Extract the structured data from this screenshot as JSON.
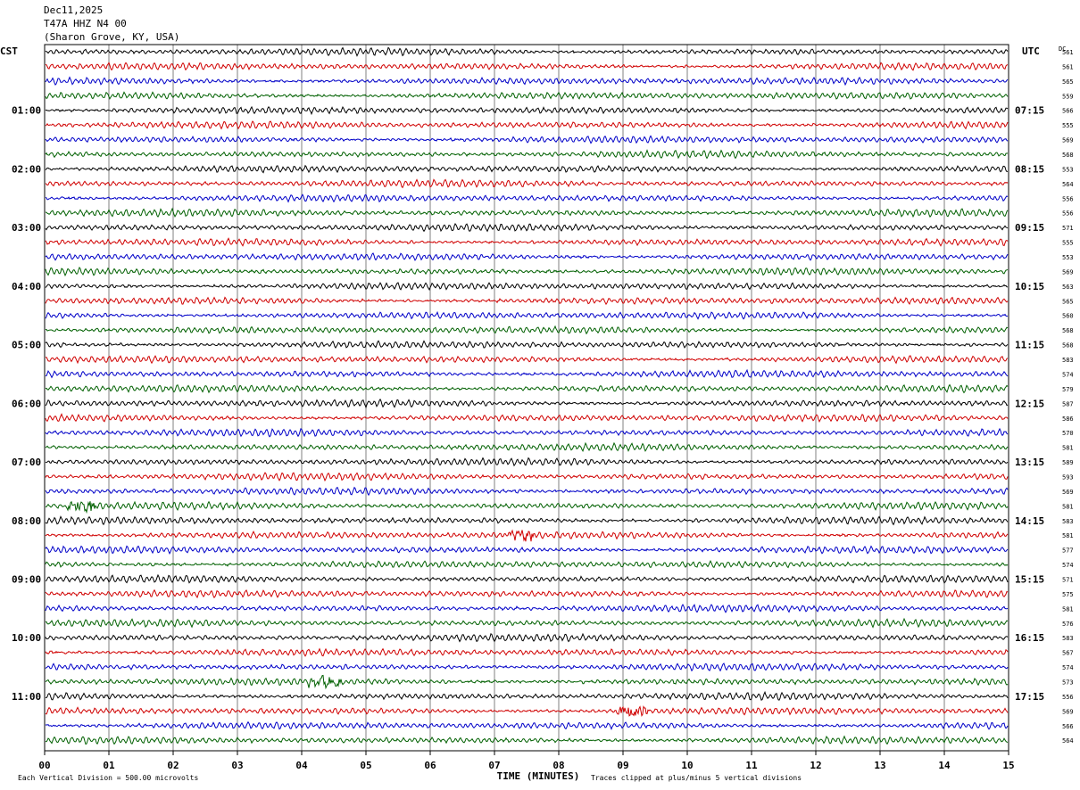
{
  "header": {
    "date": "Dec11,2025",
    "station": "T47A HHZ N4 00",
    "location": "(Sharon Grove, KY, USA)"
  },
  "left_tz": "CST",
  "right_tz": "UTC",
  "dc_label": "DC",
  "footer": {
    "scale_note": "Each Vertical Division =  500.00 microvolts",
    "clip_note": "Traces clipped at plus/minus 5 vertical divisions",
    "xlabel": "TIME (MINUTES)"
  },
  "colors": {
    "trace_cycle": [
      "#000000",
      "#d00000",
      "#0000c8",
      "#006000"
    ],
    "grid": "#808080",
    "frame": "#000000"
  },
  "chart_data": {
    "type": "line",
    "subtype": "helicorder",
    "minutes_per_trace": 15,
    "x_ticks": [
      "00",
      "01",
      "02",
      "03",
      "04",
      "05",
      "06",
      "07",
      "08",
      "09",
      "10",
      "11",
      "12",
      "13",
      "14",
      "15"
    ],
    "x_range": [
      0,
      15
    ],
    "left_hour_labels": [
      "01:00",
      "02:00",
      "03:00",
      "04:00",
      "05:00",
      "06:00",
      "07:00",
      "08:00",
      "09:00",
      "10:00",
      "11:00"
    ],
    "right_hour_labels": [
      "07:15",
      "08:15",
      "09:15",
      "10:15",
      "11:15",
      "12:15",
      "13:15",
      "14:15",
      "15:15",
      "16:15",
      "17:15"
    ],
    "trace_dc_offsets": [
      561,
      561,
      565,
      559,
      566,
      555,
      569,
      568,
      553,
      564,
      556,
      556,
      571,
      555,
      553,
      569,
      563,
      565,
      560,
      568,
      568,
      583,
      574,
      579,
      587,
      586,
      570,
      581,
      589,
      593,
      569,
      581,
      583,
      581,
      577,
      574,
      571,
      575,
      581,
      576,
      583,
      567,
      574,
      573,
      556,
      569,
      566,
      564
    ],
    "events": [
      {
        "trace": 31,
        "start_min": 0.3,
        "end_min": 0.8,
        "note": "burst"
      },
      {
        "trace": 43,
        "start_min": 4.1,
        "end_min": 4.6,
        "note": "burst"
      },
      {
        "trace": 33,
        "start_min": 7.2,
        "end_min": 7.6,
        "note": "burst"
      },
      {
        "trace": 45,
        "start_min": 8.9,
        "end_min": 9.4,
        "note": "burst"
      }
    ]
  }
}
